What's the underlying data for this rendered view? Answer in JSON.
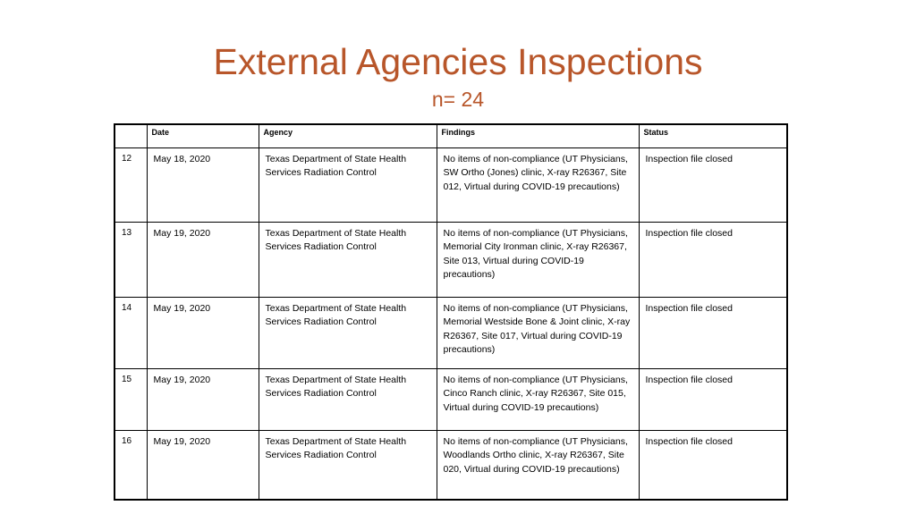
{
  "title": "External Agencies Inspections",
  "subtitle": "n= 24",
  "table": {
    "headers": [
      "",
      "Date",
      "Agency",
      "Findings",
      "Status"
    ],
    "rows": [
      {
        "num": "12",
        "date": "May 18, 2020",
        "agency": "Texas Department of State Health Services Radiation Control",
        "findings": "No items of non-compliance (UT Physicians, SW Ortho (Jones) clinic, X-ray R26367, Site 012, Virtual during COVID-19 precautions)",
        "status": "Inspection file closed"
      },
      {
        "num": "13",
        "date": "May 19, 2020",
        "agency": "Texas Department of State Health Services Radiation Control",
        "findings": "No items of non-compliance (UT Physicians, Memorial City Ironman clinic, X-ray R26367, Site 013, Virtual during COVID-19 precautions)",
        "status": "Inspection file closed"
      },
      {
        "num": "14",
        "date": "May 19, 2020",
        "agency": "Texas Department of State Health Services Radiation Control",
        "findings": "No items of non-compliance (UT Physicians, Memorial Westside Bone & Joint clinic, X-ray R26367, Site 017, Virtual during COVID-19 precautions)",
        "status": "Inspection file closed"
      },
      {
        "num": "15",
        "date": "May 19, 2020",
        "agency": "Texas Department of State Health Services Radiation Control",
        "findings": "No items of non-compliance (UT Physicians, Cinco Ranch clinic, X-ray R26367, Site 015, Virtual during COVID-19 precautions)",
        "status": "Inspection file closed"
      },
      {
        "num": "16",
        "date": "May 19, 2020",
        "agency": "Texas Department of State Health Services Radiation Control",
        "findings": "No items of non-compliance (UT Physicians, Woodlands Ortho clinic, X-ray R26367, Site 020, Virtual during COVID-19 precautions)",
        "status": "Inspection file closed"
      }
    ]
  },
  "colors": {
    "title": "#b8562a",
    "border": "#000000"
  }
}
